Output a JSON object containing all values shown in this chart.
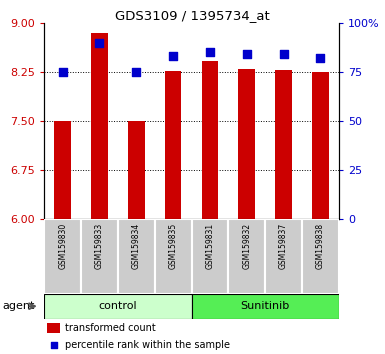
{
  "title": "GDS3109 / 1395734_at",
  "samples": [
    "GSM159830",
    "GSM159833",
    "GSM159834",
    "GSM159835",
    "GSM159831",
    "GSM159832",
    "GSM159837",
    "GSM159838"
  ],
  "bar_values": [
    7.5,
    8.85,
    7.5,
    8.27,
    8.42,
    8.3,
    8.28,
    8.25
  ],
  "percentile_values": [
    75,
    90,
    75,
    83,
    85,
    84,
    84,
    82
  ],
  "ylim_left": [
    6,
    9
  ],
  "ylim_right": [
    0,
    100
  ],
  "yticks_left": [
    6,
    6.75,
    7.5,
    8.25,
    9
  ],
  "yticks_right": [
    0,
    25,
    50,
    75,
    100
  ],
  "bar_color": "#cc0000",
  "dot_color": "#0000cc",
  "control_label": "control",
  "sunitinib_label": "Sunitinib",
  "agent_label": "agent",
  "legend_bar_label": "transformed count",
  "legend_dot_label": "percentile rank within the sample",
  "control_bg": "#ccffcc",
  "sunitinib_bg": "#55ee55",
  "sample_bg": "#cccccc",
  "bar_width": 0.45,
  "dot_size": 30
}
